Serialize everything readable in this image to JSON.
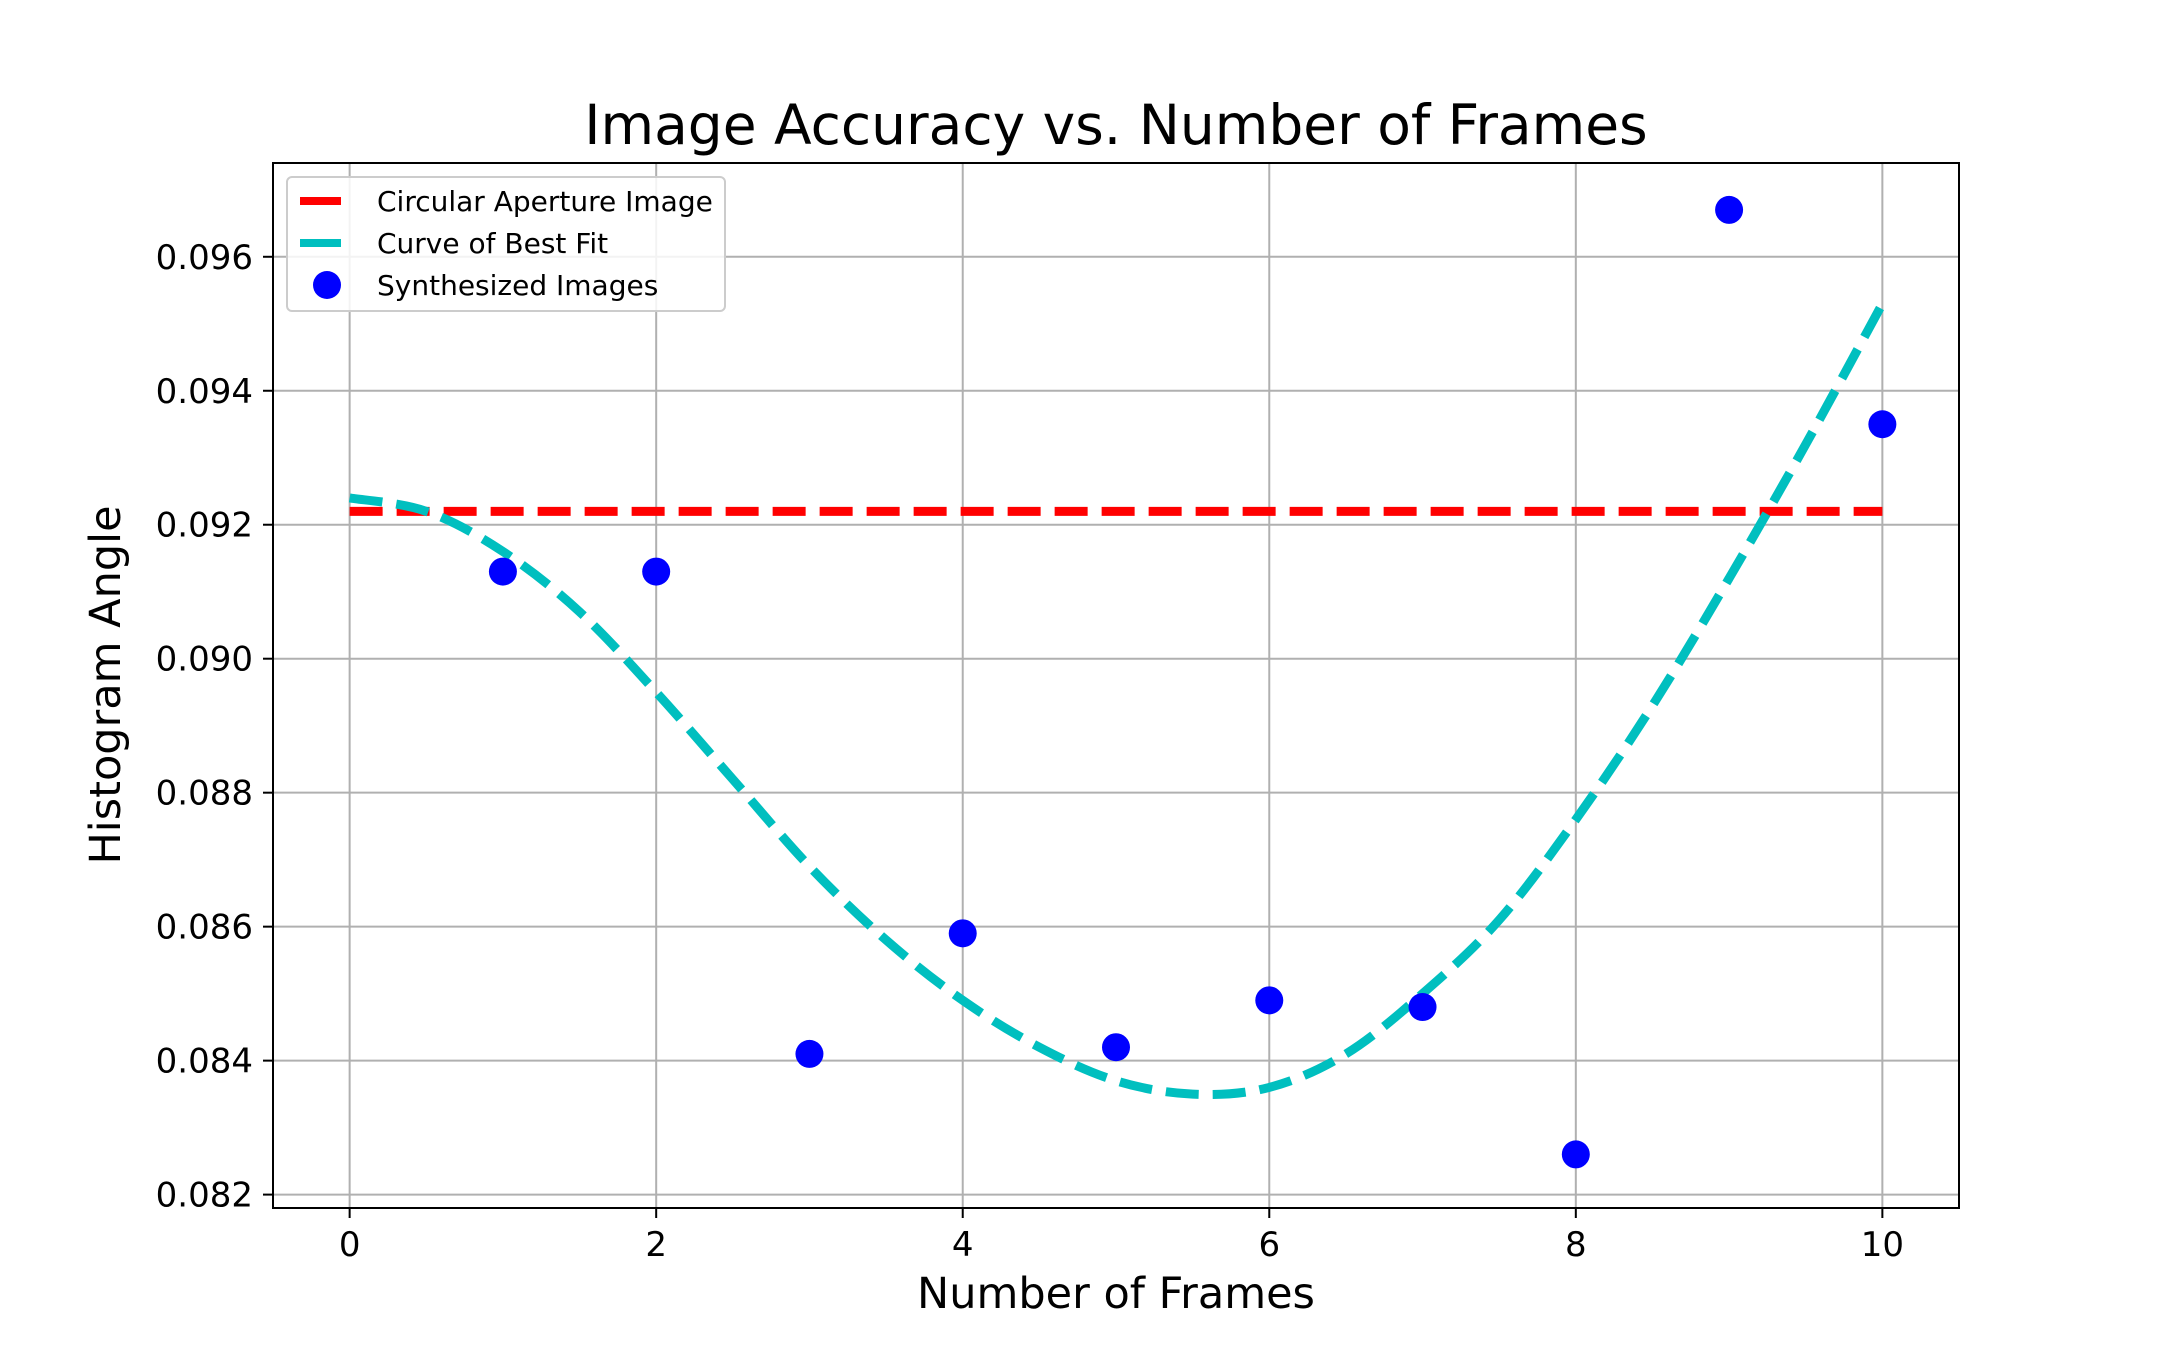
{
  "chart_data": {
    "type": "scatter",
    "title": "Image Accuracy vs. Number of Frames",
    "xlabel": "Number of Frames",
    "ylabel": "Histogram Angle",
    "xlim": [
      -0.5,
      10.5
    ],
    "ylim": [
      0.0818,
      0.0974
    ],
    "xticks": [
      0,
      2,
      4,
      6,
      8,
      10
    ],
    "xtick_labels": [
      "0",
      "2",
      "4",
      "6",
      "8",
      "10"
    ],
    "yticks": [
      0.082,
      0.084,
      0.086,
      0.088,
      0.09,
      0.092,
      0.094,
      0.096
    ],
    "ytick_labels": [
      "0.082",
      "0.084",
      "0.086",
      "0.088",
      "0.090",
      "0.092",
      "0.094",
      "0.096"
    ],
    "grid": true,
    "legend_position": "top-left",
    "series": [
      {
        "name": "Circular Aperture Image",
        "kind": "dashed-line",
        "color": "#ff0000",
        "x": [
          0,
          10
        ],
        "y": [
          0.0922,
          0.0922
        ]
      },
      {
        "name": "Curve of Best Fit",
        "kind": "dashed-line",
        "color": "#00bfbf",
        "x": [
          0,
          0.5,
          1,
          1.5,
          2,
          2.5,
          3,
          3.5,
          4,
          4.5,
          5,
          5.5,
          6,
          6.5,
          7,
          7.5,
          8,
          8.5,
          9,
          9.5,
          10
        ],
        "y": [
          0.0924,
          0.0922,
          0.0916,
          0.0907,
          0.0895,
          0.0882,
          0.0869,
          0.0858,
          0.0849,
          0.0842,
          0.0837,
          0.0835,
          0.0836,
          0.0841,
          0.085,
          0.0861,
          0.0876,
          0.0893,
          0.0912,
          0.0932,
          0.0953
        ]
      },
      {
        "name": "Synthesized Images",
        "kind": "scatter",
        "color": "#0000ff",
        "x": [
          1,
          2,
          3,
          4,
          5,
          6,
          7,
          8,
          9,
          10
        ],
        "y": [
          0.0913,
          0.0913,
          0.0841,
          0.0859,
          0.0842,
          0.0849,
          0.0848,
          0.0826,
          0.0967,
          0.0935
        ]
      }
    ]
  }
}
